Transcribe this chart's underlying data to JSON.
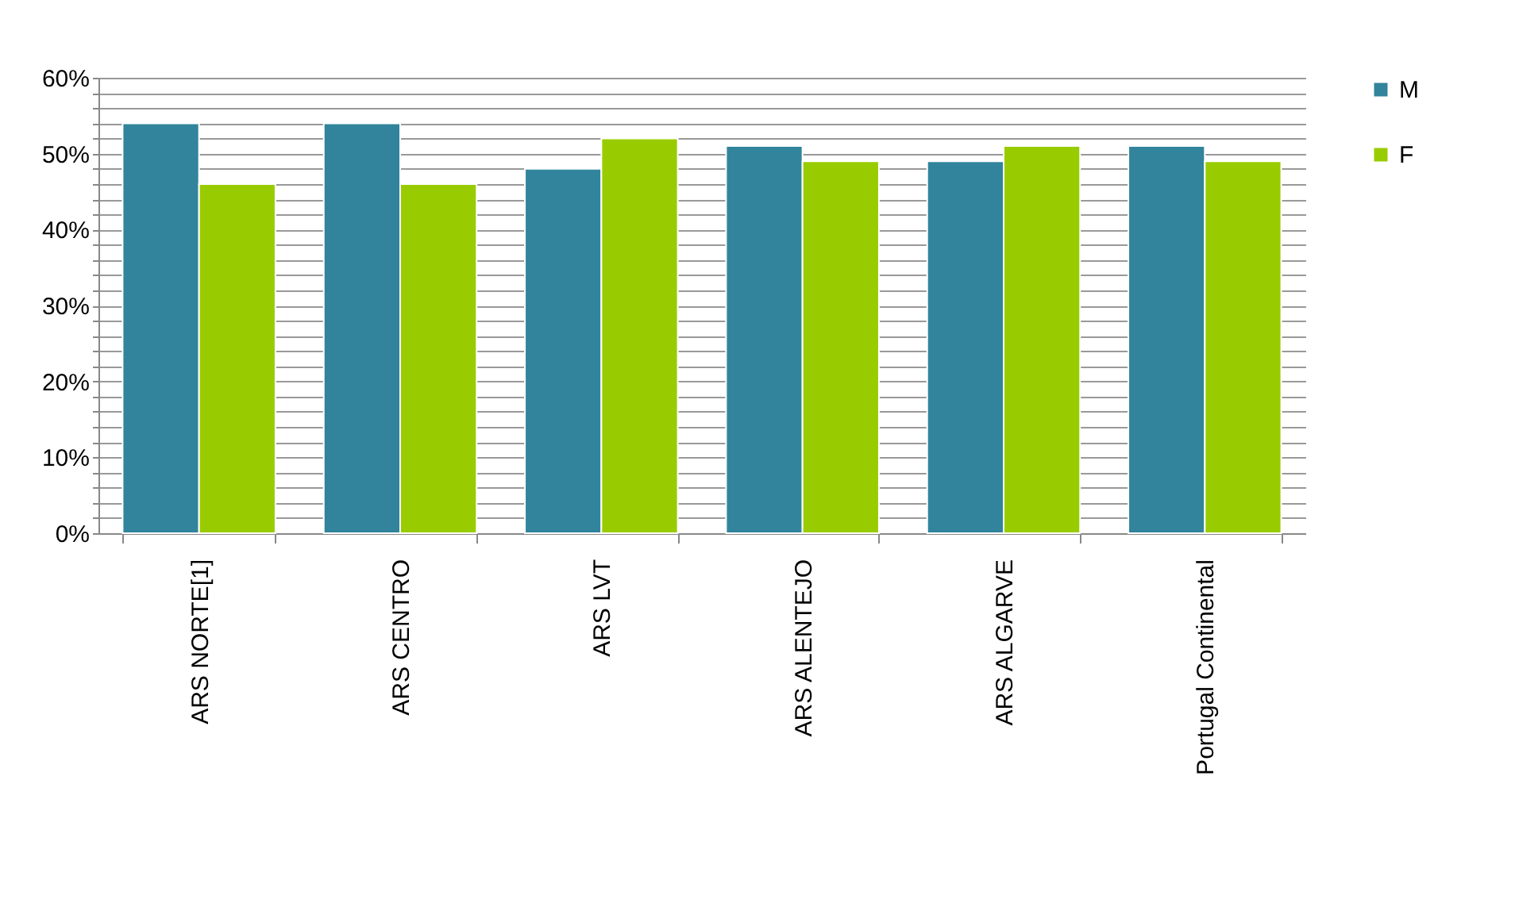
{
  "chart_data": {
    "type": "bar",
    "categories": [
      "ARS NORTE[1]",
      "ARS CENTRO",
      "ARS LVT",
      "ARS ALENTEJO",
      "ARS ALGARVE",
      "Portugal Continental"
    ],
    "series": [
      {
        "name": "M",
        "color": "#31849b",
        "values": [
          54,
          54,
          48,
          51,
          49,
          51
        ]
      },
      {
        "name": "F",
        "color": "#99cc00",
        "values": [
          46,
          46,
          52,
          49,
          51,
          49
        ]
      }
    ],
    "ylim": [
      0,
      60
    ],
    "yticks": [
      {
        "value": 0,
        "label": "0%"
      },
      {
        "value": 2,
        "label": null
      },
      {
        "value": 4,
        "label": null
      },
      {
        "value": 6,
        "label": null
      },
      {
        "value": 8,
        "label": null
      },
      {
        "value": 10,
        "label": "10%"
      },
      {
        "value": 12,
        "label": null
      },
      {
        "value": 14,
        "label": null
      },
      {
        "value": 16,
        "label": null
      },
      {
        "value": 18,
        "label": null
      },
      {
        "value": 20,
        "label": "20%"
      },
      {
        "value": 22,
        "label": null
      },
      {
        "value": 24,
        "label": null
      },
      {
        "value": 26,
        "label": null
      },
      {
        "value": 28,
        "label": null
      },
      {
        "value": 30,
        "label": "30%"
      },
      {
        "value": 32,
        "label": null
      },
      {
        "value": 34,
        "label": null
      },
      {
        "value": 36,
        "label": null
      },
      {
        "value": 38,
        "label": null
      },
      {
        "value": 40,
        "label": "40%"
      },
      {
        "value": 42,
        "label": null
      },
      {
        "value": 44,
        "label": null
      },
      {
        "value": 46,
        "label": null
      },
      {
        "value": 48,
        "label": null
      },
      {
        "value": 50,
        "label": "50%"
      },
      {
        "value": 52,
        "label": null
      },
      {
        "value": 54,
        "label": null
      },
      {
        "value": 56,
        "label": null
      },
      {
        "value": 58,
        "label": null
      },
      {
        "value": 60,
        "label": "60%"
      }
    ],
    "grid": "y",
    "legend": "right"
  }
}
